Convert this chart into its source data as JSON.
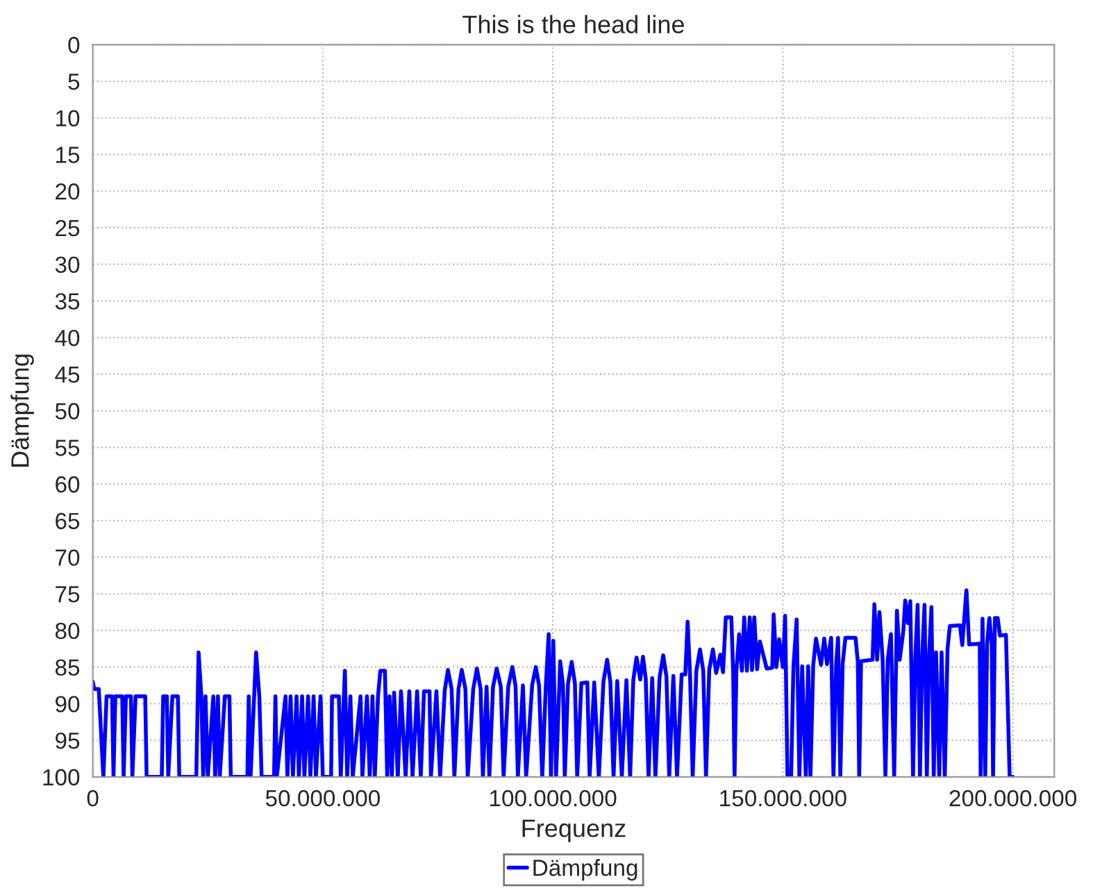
{
  "chart_data": {
    "type": "line",
    "title": "This is the head line",
    "xlabel": "Frequenz",
    "ylabel": "Dämpfung",
    "xlim": [
      0,
      209000000
    ],
    "xticks": [
      0,
      {
        "value": 50000000,
        "label": "50.000.000"
      },
      {
        "value": 100000000,
        "label": "100.000.000"
      },
      {
        "value": 150000000,
        "label": "150.000.000"
      },
      {
        "value": 200000000,
        "label": "200.000.000"
      }
    ],
    "ylim": [
      100,
      0
    ],
    "yticks": [
      0,
      5,
      10,
      15,
      20,
      25,
      30,
      35,
      40,
      45,
      50,
      55,
      60,
      65,
      70,
      75,
      80,
      85,
      90,
      95,
      100
    ],
    "grid": true,
    "legend": "bottom",
    "marker": "none",
    "line_style": "solid",
    "series": [
      {
        "name": "Dämpfung",
        "color": "#0000ff",
        "x": [
          0,
          300000.0,
          1300000.0,
          2300000.0,
          3000000.0,
          4200000.0,
          4500000.0,
          4900000.0,
          6400000.0,
          6700000.0,
          7200000.0,
          8300000.0,
          8600000.0,
          9300000.0,
          11400000.0,
          11700000.0,
          15000000.0,
          15300000.0,
          16100000.0,
          16400000.0,
          17300000.0,
          18500000.0,
          18800000.0,
          22500000.0,
          23000000.0,
          23600000.0,
          24000000.0,
          24500000.0,
          25000000.0,
          26200000.0,
          26600000.0,
          27200000.0,
          27600000.0,
          28700000.0,
          29700000.0,
          30000000.0,
          33600000.0,
          33900000.0,
          34300000.0,
          35500000.0,
          36200000.0,
          36700000.0,
          39400000.0,
          39700000.0,
          40000000.0,
          41900000.0,
          42300000.0,
          43000000.0,
          43500000.0,
          44300000.0,
          44800000.0,
          45500000.0,
          46000000.0,
          46800000.0,
          47300000.0,
          48000000.0,
          48500000.0,
          49500000.0,
          50000000.0,
          51800000.0,
          52000000.0,
          53500000.0,
          53900000.0,
          54800000.0,
          55300000.0,
          56000000.0,
          56500000.0,
          58200000.0,
          58600000.0,
          59600000.0,
          60200000.0,
          60800000.0,
          61300000.0,
          62000000.0,
          62500000.0,
          63500000.0,
          64000000.0,
          64500000.0,
          65000000.0,
          65500000.0,
          66300000.0,
          67000000.0,
          68000000.0,
          68800000.0,
          69500000.0,
          70500000.0,
          71300000.0,
          72000000.0,
          73200000.0,
          73500000.0,
          74700000.0,
          75500000.0,
          76500000.0,
          77200000.0,
          78000000.0,
          78600000.0,
          79500000.0,
          80200000.0,
          81000000.0,
          81500000.0,
          82700000.0,
          83500000.0,
          84300000.0,
          84800000.0,
          85600000.0,
          86200000.0,
          87000000.0,
          87800000.0,
          88700000.0,
          89300000.0,
          90300000.0,
          91200000.0,
          91900000.0,
          92400000.0,
          93500000.0,
          94200000.0,
          95500000.0,
          96300000.0,
          97000000.0,
          97700000.0,
          98500000.0,
          99100000.0,
          99600000.0,
          100100000.0,
          100700000.0,
          101600000.0,
          102200000.0,
          102600000.0,
          103300000.0,
          104100000.0,
          104800000.0,
          105300000.0,
          106200000.0,
          107500000.0,
          108000000.0,
          109000000.0,
          110000000.0,
          111000000.0,
          111800000.0,
          112500000.0,
          113200000.0,
          114000000.0,
          115000000.0,
          116000000.0,
          116800000.0,
          117500000.0,
          118200000.0,
          119000000.0,
          119600000.0,
          120200000.0,
          120800000.0,
          121600000.0,
          122300000.0,
          123200000.0,
          124000000.0,
          124700000.0,
          125300000.0,
          126200000.0,
          127000000.0,
          128000000.0,
          128800000.0,
          129300000.0,
          129800000.0,
          130400000.0,
          131200000.0,
          132000000.0,
          132700000.0,
          133300000.0,
          134000000.0,
          134800000.0,
          135500000.0,
          136400000.0,
          137000000.0,
          137600000.0,
          138800000.0,
          139200000.0,
          139500000.0,
          139900000.0,
          140500000.0,
          141100000.0,
          141600000.0,
          142200000.0,
          142800000.0,
          143300000.0,
          143800000.0,
          144400000.0,
          145000000.0,
          146500000.0,
          147700000.0,
          148000000.0,
          148600000.0,
          149200000.0,
          150000000.0,
          150500000.0,
          151000000.0,
          151800000.0,
          152300000.0,
          153000000.0,
          153600000.0,
          154200000.0,
          155000000.0,
          155500000.0,
          156000000.0,
          156600000.0,
          157200000.0,
          158300000.0,
          159000000.0,
          159600000.0,
          160500000.0,
          161000000.0,
          161600000.0,
          162000000.0,
          162500000.0,
          163000000.0,
          163600000.0,
          165800000.0,
          166300000.0,
          166600000.0,
          167000000.0,
          169500000.0,
          169900000.0,
          170500000.0,
          171000000.0,
          171700000.0,
          172300000.0,
          172800000.0,
          173500000.0,
          174200000.0,
          174800000.0,
          175400000.0,
          176200000.0,
          176600000.0,
          177200000.0,
          177700000.0,
          178300000.0,
          178800000.0,
          179300000.0,
          179800000.0,
          180300000.0,
          180800000.0,
          181300000.0,
          181800000.0,
          182300000.0,
          182800000.0,
          183300000.0,
          184000000.0,
          184500000.0,
          185200000.0,
          185800000.0,
          186300000.0,
          188500000.0,
          189000000.0,
          189900000.0,
          190500000.0,
          192800000.0,
          193000000.0,
          193400000.0,
          194000000.0,
          194400000.0,
          194900000.0,
          195400000.0,
          195700000.0,
          196100000.0,
          196700000.0,
          197200000.0,
          198500000.0,
          199300000.0,
          200000000.0
        ],
        "values": [
          87,
          88,
          88,
          100,
          89,
          89,
          100,
          89,
          89,
          100,
          89,
          89,
          100,
          89,
          89,
          100,
          100,
          89,
          89,
          100,
          89,
          89,
          100,
          100,
          83,
          89,
          100,
          89,
          100,
          89,
          100,
          89,
          100,
          89,
          89,
          100,
          100,
          89,
          100,
          83,
          89,
          100,
          100,
          89,
          100,
          89,
          100,
          89,
          100,
          89,
          100,
          89,
          100,
          89,
          100,
          89,
          100,
          89,
          100,
          100,
          89,
          89,
          100,
          85.5,
          100,
          89,
          100,
          89,
          100,
          89,
          100,
          89,
          100,
          89,
          85.5,
          85.5,
          100,
          89,
          100,
          88.5,
          100,
          88.3,
          100,
          88.3,
          100,
          88.3,
          100,
          88.3,
          88.3,
          100,
          88.3,
          100,
          88.2,
          85.4,
          88,
          100,
          88,
          85.4,
          88,
          100,
          88,
          85.2,
          88,
          100,
          87.7,
          100,
          87.7,
          85.2,
          87.7,
          100,
          87.7,
          85,
          87.6,
          100,
          87.5,
          100,
          87.5,
          85,
          87.5,
          100,
          87.3,
          80.5,
          100,
          81.4,
          100,
          84.2,
          87.4,
          100,
          87.3,
          84.3,
          87.2,
          100,
          87.2,
          87.1,
          100,
          87.1,
          100,
          87,
          84,
          87,
          100,
          86.9,
          100,
          86.8,
          100,
          86.7,
          83.7,
          86.7,
          83.6,
          86.6,
          100,
          86.5,
          100,
          86.4,
          83.4,
          86.3,
          100,
          86.2,
          100,
          86,
          86,
          78.8,
          85.6,
          100,
          85.5,
          82.6,
          85.5,
          100,
          85.4,
          82.6,
          85.8,
          83.3,
          85.7,
          78.2,
          78.2,
          85.6,
          100,
          85.6,
          80.5,
          85.5,
          78.2,
          85.5,
          78.2,
          85.4,
          78.2,
          85.3,
          81.5,
          85.2,
          85.1,
          77.8,
          85,
          81.2,
          85,
          78,
          100,
          100,
          85,
          78.5,
          100,
          84.9,
          100,
          84.9,
          100,
          84.8,
          81.1,
          84.7,
          81.1,
          84.6,
          81,
          100,
          84.5,
          81,
          100,
          84.5,
          81,
          81,
          84.3,
          100,
          84.2,
          84,
          76.4,
          84,
          77.5,
          84,
          100,
          84,
          80.5,
          100,
          77.3,
          84,
          80,
          75.9,
          79,
          76,
          100,
          83.5,
          76.5,
          100,
          83.3,
          76.5,
          100,
          83.2,
          76.8,
          100,
          83,
          100,
          83,
          100,
          82.5,
          79.4,
          79.3,
          82,
          74.5,
          81.9,
          81.8,
          100,
          78.4,
          100,
          81.8,
          78.3,
          81.8,
          100,
          78.3,
          78.3,
          80.7,
          80.6,
          100,
          100
        ]
      }
    ]
  }
}
